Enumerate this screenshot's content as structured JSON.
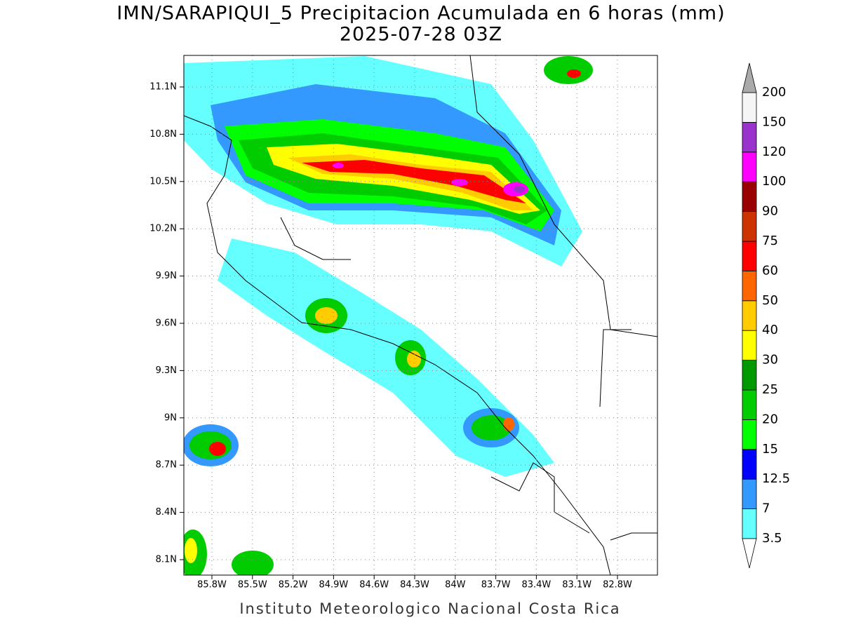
{
  "header": {
    "title": "IMN/SARAPIQUI_5 Precipitacion Acumulada en 6 horas (mm)",
    "subtitle": "2025-07-28 03Z"
  },
  "map": {
    "lat_labels": [
      "11.1N",
      "10.8N",
      "10.5N",
      "10.2N",
      "9.9N",
      "9.6N",
      "9.3N",
      "9N",
      "8.7N",
      "8.4N",
      "8.1N"
    ],
    "lon_labels": [
      "85.8W",
      "85.5W",
      "85.2W",
      "84.9W",
      "84.6W",
      "84.3W",
      "84W",
      "83.7W",
      "83.4W",
      "83.1W",
      "82.8W"
    ]
  },
  "colorbar": {
    "levels": [
      3.5,
      7,
      12.5,
      15,
      20,
      25,
      30,
      40,
      50,
      60,
      75,
      90,
      100,
      120,
      150,
      200
    ],
    "colors": [
      "#66ffff",
      "#3399ff",
      "#0000ff",
      "#00ff00",
      "#00cc00",
      "#009900",
      "#ffff00",
      "#ffcc00",
      "#ff6600",
      "#ff0000",
      "#cc3300",
      "#990000",
      "#ff00ff",
      "#9933cc",
      "#f5f5f5"
    ],
    "under_color": "#ffffff",
    "over_color": "#aaaaaa"
  },
  "footer": "Instituto Meteorologico Nacional Costa Rica"
}
